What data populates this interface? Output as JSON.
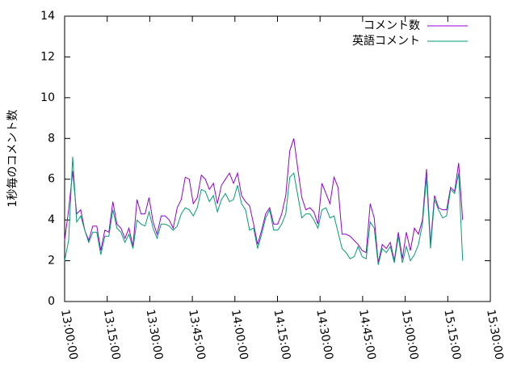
{
  "chart_data": {
    "type": "line",
    "y_label": "1秒毎のコメント数",
    "x": [
      "13:00:00",
      "13:01:25",
      "13:02:50",
      "13:04:15",
      "13:05:40",
      "13:07:05",
      "13:08:30",
      "13:09:55",
      "13:11:20",
      "13:12:45",
      "13:14:10",
      "13:15:35",
      "13:17:00",
      "13:18:25",
      "13:19:50",
      "13:21:15",
      "13:22:40",
      "13:24:05",
      "13:25:30",
      "13:26:55",
      "13:28:20",
      "13:29:45",
      "13:31:10",
      "13:32:35",
      "13:34:00",
      "13:35:25",
      "13:36:50",
      "13:38:15",
      "13:39:40",
      "13:41:05",
      "13:42:30",
      "13:43:55",
      "13:45:20",
      "13:46:45",
      "13:48:10",
      "13:49:35",
      "13:51:00",
      "13:52:25",
      "13:53:50",
      "13:55:15",
      "13:56:40",
      "13:58:05",
      "13:59:30",
      "14:00:55",
      "14:02:20",
      "14:03:45",
      "14:05:10",
      "14:06:35",
      "14:08:00",
      "14:09:25",
      "14:10:50",
      "14:12:15",
      "14:13:40",
      "14:15:05",
      "14:16:30",
      "14:17:55",
      "14:19:20",
      "14:20:45",
      "14:22:10",
      "14:23:35",
      "14:25:00",
      "14:26:25",
      "14:27:50",
      "14:29:15",
      "14:30:40",
      "14:32:05",
      "14:33:30",
      "14:34:55",
      "14:36:20",
      "14:37:45",
      "14:39:10",
      "14:40:35",
      "14:42:00",
      "14:43:25",
      "14:44:50",
      "14:46:15",
      "14:47:40",
      "14:49:05",
      "14:50:30",
      "14:51:55",
      "14:53:20",
      "14:54:45",
      "14:56:10",
      "14:57:35",
      "14:59:00",
      "15:00:25",
      "15:01:50",
      "15:03:15",
      "15:04:40",
      "15:06:05",
      "15:07:30",
      "15:08:55",
      "15:10:20",
      "15:11:45",
      "15:13:10",
      "15:14:35",
      "15:16:00",
      "15:17:25",
      "15:18:50",
      "15:20:15"
    ],
    "series": [
      {
        "name": "コメント数",
        "color": "#9400d3",
        "values": [
          3.0,
          4.5,
          6.4,
          4.3,
          4.5,
          3.5,
          3.0,
          3.7,
          3.7,
          2.5,
          3.5,
          3.4,
          4.9,
          3.8,
          3.6,
          3.1,
          3.6,
          2.7,
          5.0,
          4.3,
          4.3,
          5.1,
          3.9,
          3.3,
          4.2,
          4.2,
          4.0,
          3.6,
          4.6,
          5.0,
          6.1,
          6.0,
          4.8,
          5.1,
          6.2,
          6.0,
          5.5,
          5.8,
          4.8,
          5.7,
          6.0,
          6.3,
          5.8,
          6.3,
          5.2,
          4.9,
          4.7,
          3.8,
          2.8,
          3.5,
          4.3,
          4.6,
          3.8,
          3.8,
          4.3,
          5.2,
          7.4,
          8.0,
          6.5,
          5.1,
          4.5,
          4.6,
          4.4,
          3.8,
          5.8,
          5.3,
          4.8,
          6.1,
          5.6,
          3.3,
          3.3,
          3.2,
          3.0,
          2.8,
          2.5,
          2.4,
          4.8,
          4.1,
          1.9,
          2.8,
          2.6,
          2.9,
          2.0,
          3.4,
          2.1,
          3.4,
          2.5,
          3.6,
          3.3,
          4.0,
          6.5,
          2.8,
          5.2,
          4.6,
          4.5,
          4.5,
          5.6,
          5.4,
          6.8,
          4.0
        ]
      },
      {
        "name": "英語コメント",
        "color": "#009e73",
        "values": [
          2.0,
          3.0,
          7.1,
          3.9,
          4.2,
          3.5,
          2.9,
          3.4,
          3.4,
          2.3,
          3.2,
          3.2,
          4.5,
          3.6,
          3.4,
          2.9,
          3.3,
          2.6,
          4.0,
          3.8,
          3.7,
          4.4,
          3.6,
          3.1,
          3.8,
          3.8,
          3.7,
          3.5,
          3.7,
          4.3,
          4.6,
          4.5,
          4.2,
          4.6,
          5.5,
          5.4,
          4.9,
          5.2,
          4.4,
          5.0,
          5.3,
          4.9,
          5.0,
          5.7,
          4.8,
          4.5,
          3.5,
          3.6,
          2.6,
          3.3,
          4.1,
          4.5,
          3.5,
          3.5,
          3.8,
          4.3,
          6.1,
          6.3,
          5.2,
          4.1,
          4.3,
          4.3,
          4.0,
          3.6,
          4.5,
          4.6,
          4.1,
          4.2,
          3.4,
          2.6,
          2.4,
          2.1,
          2.2,
          2.7,
          2.2,
          2.1,
          3.9,
          3.6,
          1.8,
          2.6,
          2.4,
          2.7,
          1.9,
          3.2,
          1.9,
          2.7,
          2.0,
          2.3,
          2.8,
          3.8,
          6.1,
          2.6,
          5.0,
          4.5,
          4.1,
          4.2,
          5.5,
          5.3,
          6.3,
          2.0
        ]
      }
    ],
    "xlim": [
      "13:00:00",
      "15:30:00"
    ],
    "xticks": [
      "13:00:00",
      "13:15:00",
      "13:30:00",
      "13:45:00",
      "14:00:00",
      "14:15:00",
      "14:30:00",
      "14:45:00",
      "15:00:00",
      "15:15:00",
      "15:30:00"
    ],
    "ylim": [
      0,
      14
    ],
    "yticks": [
      0,
      2,
      4,
      6,
      8,
      10,
      12,
      14
    ],
    "grid": false,
    "legend": "top-right"
  }
}
